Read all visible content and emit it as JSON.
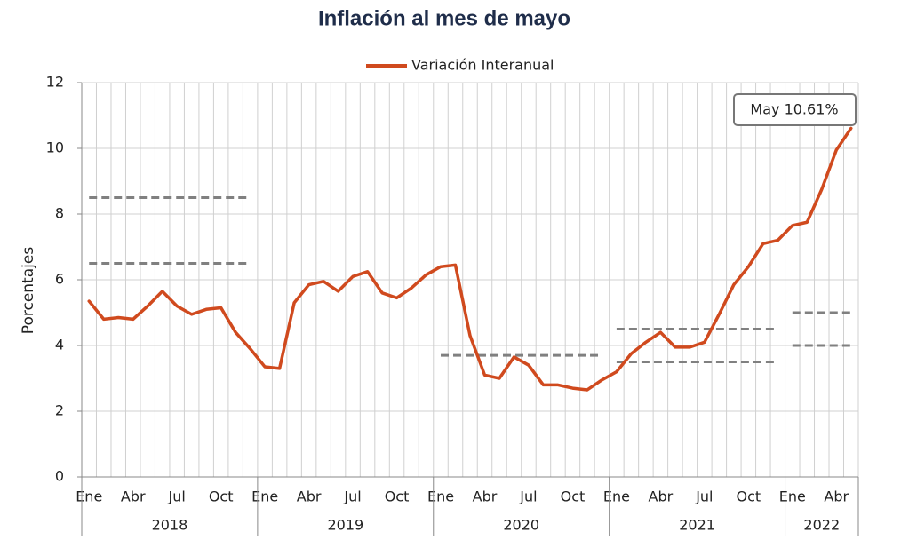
{
  "chart_data": {
    "type": "line",
    "title": "Inflación al mes de mayo",
    "y_label": "Porcentajes",
    "categories": [
      "Ene",
      null,
      null,
      "Abr",
      null,
      null,
      "Jul",
      null,
      null,
      "Oct",
      null,
      null,
      "Ene",
      null,
      null,
      "Abr",
      null,
      null,
      "Jul",
      null,
      null,
      "Oct",
      null,
      null,
      "Ene",
      null,
      null,
      "Abr",
      null,
      null,
      "Jul",
      null,
      null,
      "Oct",
      null,
      null,
      "Ene",
      null,
      null,
      "Abr",
      null,
      null,
      "Jul",
      null,
      null,
      "Oct",
      null,
      null,
      "Ene",
      null,
      null,
      "Abr",
      null
    ],
    "series": [
      {
        "name": "Variación Interanual",
        "color": "#d04a1e",
        "values": [
          5.35,
          4.8,
          4.85,
          4.8,
          5.2,
          5.65,
          5.2,
          4.95,
          5.1,
          5.15,
          4.4,
          3.9,
          3.35,
          3.3,
          5.3,
          5.85,
          5.95,
          5.65,
          6.1,
          6.25,
          5.6,
          5.45,
          5.75,
          6.15,
          6.4,
          6.45,
          4.3,
          3.1,
          3.0,
          3.65,
          3.4,
          2.8,
          2.8,
          2.7,
          2.65,
          2.95,
          3.2,
          3.75,
          4.1,
          4.4,
          3.95,
          3.95,
          4.1,
          4.95,
          5.85,
          6.4,
          7.1,
          7.2,
          7.65,
          7.75,
          8.75,
          9.95,
          10.61
        ]
      }
    ],
    "year_groups": [
      {
        "label": "2018",
        "span": 12,
        "targets": [
          6.5,
          8.5
        ]
      },
      {
        "label": "2019",
        "span": 12,
        "targets": []
      },
      {
        "label": "2020",
        "span": 12,
        "targets": [
          3.7
        ]
      },
      {
        "label": "2021",
        "span": 12,
        "targets": [
          3.5,
          4.5
        ]
      },
      {
        "label": "2022",
        "span": 5,
        "targets": [
          4,
          5
        ]
      }
    ],
    "annotation": "May 10.61%",
    "ylim": [
      0,
      12
    ],
    "yticks": [
      0,
      2,
      4,
      6,
      8,
      10,
      12
    ],
    "grid": true
  }
}
